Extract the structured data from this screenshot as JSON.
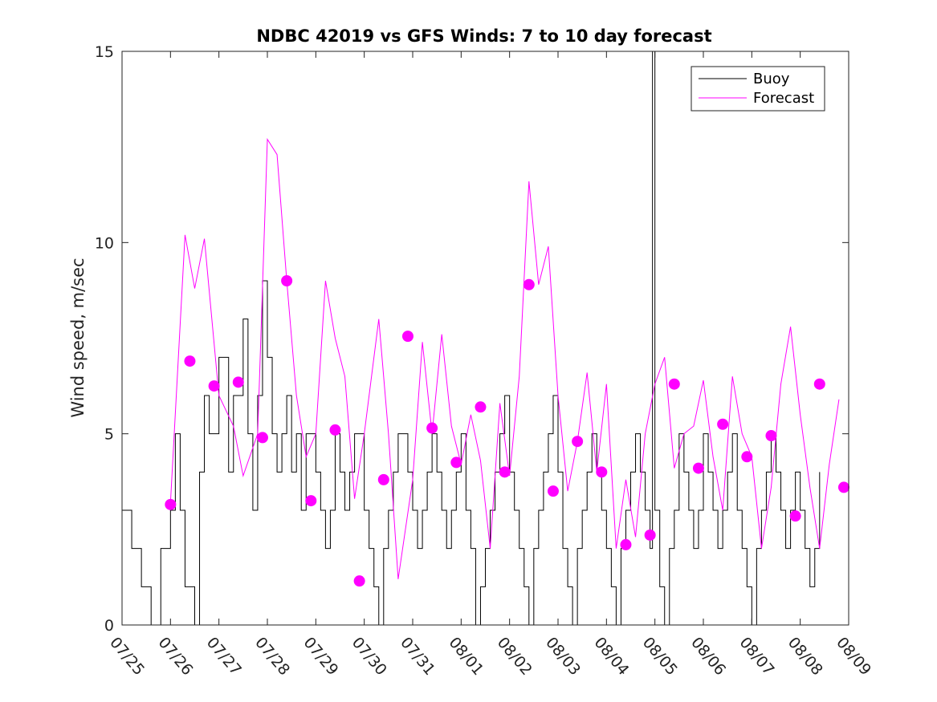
{
  "chart_data": {
    "type": "line",
    "title": "NDBC 42019 vs GFS Winds: 7 to 10 day forecast",
    "xlabel": "",
    "ylabel": "Wind speed, m/sec",
    "ylim": [
      0,
      15
    ],
    "yticks": [
      "0",
      "5",
      "10",
      "15"
    ],
    "xlim_days": [
      0,
      15
    ],
    "xticks": [
      "07/25",
      "07/26",
      "07/27",
      "07/28",
      "07/29",
      "07/30",
      "07/31",
      "08/01",
      "08/02",
      "08/03",
      "08/04",
      "08/05",
      "08/06",
      "08/07",
      "08/08",
      "08/09"
    ],
    "grid": false,
    "legend_position": "top-right",
    "colors": {
      "buoy": "#000000",
      "forecast": "#ff00ff"
    },
    "series": [
      {
        "name": "Buoy",
        "values": [
          [
            0,
            3
          ],
          [
            0.2,
            2
          ],
          [
            0.4,
            1
          ],
          [
            0.6,
            0
          ],
          [
            0.8,
            2
          ],
          [
            1,
            3
          ],
          [
            1.1,
            5
          ],
          [
            1.2,
            3
          ],
          [
            1.3,
            1
          ],
          [
            1.5,
            0
          ],
          [
            1.6,
            4
          ],
          [
            1.7,
            6
          ],
          [
            1.8,
            5
          ],
          [
            2.0,
            7
          ],
          [
            2.2,
            4
          ],
          [
            2.3,
            6
          ],
          [
            2.5,
            8
          ],
          [
            2.6,
            5
          ],
          [
            2.7,
            3
          ],
          [
            2.8,
            6
          ],
          [
            2.9,
            9
          ],
          [
            3.0,
            7
          ],
          [
            3.1,
            5
          ],
          [
            3.2,
            4
          ],
          [
            3.3,
            5
          ],
          [
            3.4,
            6
          ],
          [
            3.5,
            4
          ],
          [
            3.6,
            5
          ],
          [
            3.7,
            3
          ],
          [
            3.8,
            5
          ],
          [
            4.0,
            4
          ],
          [
            4.1,
            3
          ],
          [
            4.2,
            2
          ],
          [
            4.3,
            3
          ],
          [
            4.4,
            5
          ],
          [
            4.5,
            4
          ],
          [
            4.6,
            3
          ],
          [
            4.7,
            4
          ],
          [
            4.8,
            5
          ],
          [
            5.0,
            3
          ],
          [
            5.1,
            2
          ],
          [
            5.2,
            1
          ],
          [
            5.3,
            0
          ],
          [
            5.4,
            2
          ],
          [
            5.5,
            3
          ],
          [
            5.6,
            4
          ],
          [
            5.7,
            5
          ],
          [
            5.9,
            4
          ],
          [
            6.0,
            3
          ],
          [
            6.1,
            2
          ],
          [
            6.2,
            3
          ],
          [
            6.3,
            4
          ],
          [
            6.4,
            5
          ],
          [
            6.5,
            4
          ],
          [
            6.6,
            3
          ],
          [
            6.7,
            2
          ],
          [
            6.8,
            3
          ],
          [
            6.9,
            4
          ],
          [
            7.0,
            5
          ],
          [
            7.1,
            3
          ],
          [
            7.2,
            2
          ],
          [
            7.3,
            0
          ],
          [
            7.4,
            1
          ],
          [
            7.5,
            2
          ],
          [
            7.6,
            3
          ],
          [
            7.7,
            4
          ],
          [
            7.8,
            5
          ],
          [
            7.9,
            6
          ],
          [
            8.0,
            4
          ],
          [
            8.1,
            3
          ],
          [
            8.2,
            2
          ],
          [
            8.3,
            1
          ],
          [
            8.4,
            0
          ],
          [
            8.5,
            2
          ],
          [
            8.6,
            3
          ],
          [
            8.7,
            4
          ],
          [
            8.8,
            5
          ],
          [
            8.9,
            6
          ],
          [
            9.0,
            4
          ],
          [
            9.1,
            2
          ],
          [
            9.2,
            1
          ],
          [
            9.3,
            0
          ],
          [
            9.4,
            2
          ],
          [
            9.5,
            3
          ],
          [
            9.6,
            4
          ],
          [
            9.7,
            5
          ],
          [
            9.8,
            4
          ],
          [
            9.9,
            3
          ],
          [
            10.0,
            2
          ],
          [
            10.1,
            1
          ],
          [
            10.2,
            0
          ],
          [
            10.3,
            2
          ],
          [
            10.4,
            3
          ],
          [
            10.5,
            4
          ],
          [
            10.6,
            5
          ],
          [
            10.7,
            4
          ],
          [
            10.8,
            3
          ],
          [
            10.9,
            2
          ],
          [
            10.95,
            15
          ],
          [
            11.0,
            3
          ],
          [
            11.1,
            1
          ],
          [
            11.2,
            0
          ],
          [
            11.3,
            2
          ],
          [
            11.4,
            3
          ],
          [
            11.5,
            5
          ],
          [
            11.6,
            4
          ],
          [
            11.7,
            3
          ],
          [
            11.8,
            2
          ],
          [
            11.9,
            3
          ],
          [
            12.0,
            5
          ],
          [
            12.1,
            4
          ],
          [
            12.2,
            3
          ],
          [
            12.3,
            2
          ],
          [
            12.4,
            3
          ],
          [
            12.5,
            4
          ],
          [
            12.6,
            5
          ],
          [
            12.7,
            3
          ],
          [
            12.8,
            2
          ],
          [
            12.9,
            1
          ],
          [
            13.0,
            0
          ],
          [
            13.1,
            2
          ],
          [
            13.2,
            3
          ],
          [
            13.3,
            4
          ],
          [
            13.4,
            5
          ],
          [
            13.5,
            4
          ],
          [
            13.6,
            3
          ],
          [
            13.7,
            2
          ],
          [
            13.8,
            3
          ],
          [
            13.9,
            4
          ],
          [
            14.0,
            3
          ],
          [
            14.1,
            2
          ],
          [
            14.2,
            1
          ],
          [
            14.3,
            2
          ],
          [
            14.4,
            4
          ]
        ]
      },
      {
        "name": "Forecast",
        "values": [
          [
            1.0,
            3.2
          ],
          [
            1.3,
            10.2
          ],
          [
            1.5,
            8.8
          ],
          [
            1.7,
            10.1
          ],
          [
            2.0,
            6.0
          ],
          [
            2.3,
            5.2
          ],
          [
            2.5,
            3.9
          ],
          [
            2.8,
            5.0
          ],
          [
            3.0,
            12.7
          ],
          [
            3.2,
            12.3
          ],
          [
            3.4,
            9.0
          ],
          [
            3.6,
            6.0
          ],
          [
            3.8,
            4.4
          ],
          [
            4.0,
            5.0
          ],
          [
            4.2,
            9.0
          ],
          [
            4.4,
            7.5
          ],
          [
            4.6,
            6.5
          ],
          [
            4.8,
            3.3
          ],
          [
            5.0,
            5.0
          ],
          [
            5.3,
            8.0
          ],
          [
            5.5,
            5.0
          ],
          [
            5.7,
            1.2
          ],
          [
            6.0,
            3.8
          ],
          [
            6.2,
            7.4
          ],
          [
            6.4,
            5.0
          ],
          [
            6.6,
            7.6
          ],
          [
            6.8,
            5.2
          ],
          [
            7.0,
            4.2
          ],
          [
            7.2,
            5.5
          ],
          [
            7.4,
            4.3
          ],
          [
            7.6,
            2.0
          ],
          [
            7.8,
            5.8
          ],
          [
            8.0,
            3.9
          ],
          [
            8.2,
            6.5
          ],
          [
            8.4,
            11.6
          ],
          [
            8.6,
            8.9
          ],
          [
            8.8,
            9.9
          ],
          [
            9.0,
            6.0
          ],
          [
            9.2,
            3.5
          ],
          [
            9.4,
            4.8
          ],
          [
            9.6,
            6.6
          ],
          [
            9.8,
            4.0
          ],
          [
            10.0,
            6.3
          ],
          [
            10.2,
            2.0
          ],
          [
            10.4,
            3.8
          ],
          [
            10.6,
            2.3
          ],
          [
            10.8,
            5.0
          ],
          [
            11.0,
            6.3
          ],
          [
            11.2,
            7.0
          ],
          [
            11.4,
            4.1
          ],
          [
            11.6,
            5.0
          ],
          [
            11.8,
            5.2
          ],
          [
            12.0,
            6.4
          ],
          [
            12.2,
            4.4
          ],
          [
            12.4,
            3.0
          ],
          [
            12.6,
            6.5
          ],
          [
            12.8,
            5.0
          ],
          [
            13.0,
            4.4
          ],
          [
            13.2,
            2.0
          ],
          [
            13.4,
            3.6
          ],
          [
            13.6,
            6.3
          ],
          [
            13.8,
            7.8
          ],
          [
            14.0,
            5.5
          ],
          [
            14.2,
            3.6
          ],
          [
            14.4,
            2.0
          ],
          [
            14.6,
            4.2
          ],
          [
            14.8,
            5.9
          ]
        ]
      }
    ],
    "forecast_markers": [
      [
        1.0,
        3.15
      ],
      [
        1.4,
        6.9
      ],
      [
        1.9,
        6.25
      ],
      [
        2.4,
        6.35
      ],
      [
        2.9,
        4.9
      ],
      [
        3.4,
        9.0
      ],
      [
        3.9,
        3.25
      ],
      [
        4.4,
        5.1
      ],
      [
        4.9,
        1.15
      ],
      [
        5.4,
        3.8
      ],
      [
        5.9,
        7.55
      ],
      [
        6.4,
        5.15
      ],
      [
        6.9,
        4.25
      ],
      [
        7.4,
        5.7
      ],
      [
        7.9,
        4.0
      ],
      [
        8.4,
        8.9
      ],
      [
        8.9,
        3.5
      ],
      [
        9.4,
        4.8
      ],
      [
        9.9,
        4.0
      ],
      [
        10.4,
        2.1
      ],
      [
        10.9,
        2.35
      ],
      [
        11.4,
        6.3
      ],
      [
        11.9,
        4.1
      ],
      [
        12.4,
        5.25
      ],
      [
        12.9,
        4.4
      ],
      [
        13.4,
        4.95
      ],
      [
        13.9,
        2.85
      ],
      [
        14.4,
        6.3
      ],
      [
        14.9,
        3.6
      ]
    ],
    "legend": [
      "Buoy",
      "Forecast"
    ]
  }
}
